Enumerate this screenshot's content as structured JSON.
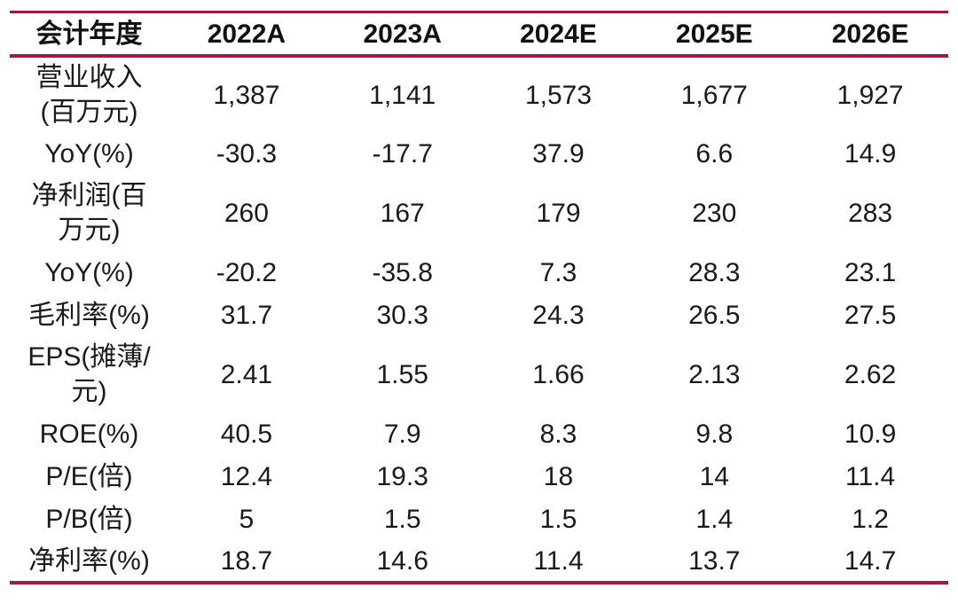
{
  "theme": {
    "accent_line_color": "#A11A45",
    "text_color": "#1a1a1a",
    "background_color": "#ffffff"
  },
  "table": {
    "name": "financial-forecast-table",
    "header": [
      "会计年度",
      "2022A",
      "2023A",
      "2024E",
      "2025E",
      "2026E"
    ],
    "rows": [
      {
        "label": "营业收入\n(百万元)",
        "tall": true,
        "values": [
          "1,387",
          "1,141",
          "1,573",
          "1,677",
          "1,927"
        ]
      },
      {
        "label": "YoY(%)",
        "tall": false,
        "values": [
          "-30.3",
          "-17.7",
          "37.9",
          "6.6",
          "14.9"
        ]
      },
      {
        "label": "净利润(百\n万元)",
        "tall": true,
        "values": [
          "260",
          "167",
          "179",
          "230",
          "283"
        ]
      },
      {
        "label": "YoY(%)",
        "tall": false,
        "values": [
          "-20.2",
          "-35.8",
          "7.3",
          "28.3",
          "23.1"
        ]
      },
      {
        "label": "毛利率(%)",
        "tall": false,
        "values": [
          "31.7",
          "30.3",
          "24.3",
          "26.5",
          "27.5"
        ]
      },
      {
        "label": "EPS(摊薄/\n元)",
        "tall": true,
        "values": [
          "2.41",
          "1.55",
          "1.66",
          "2.13",
          "2.62"
        ]
      },
      {
        "label": "ROE(%)",
        "tall": false,
        "values": [
          "40.5",
          "7.9",
          "8.3",
          "9.8",
          "10.9"
        ]
      },
      {
        "label": "P/E(倍)",
        "tall": false,
        "values": [
          "12.4",
          "19.3",
          "18",
          "14",
          "11.4"
        ]
      },
      {
        "label": "P/B(倍)",
        "tall": false,
        "values": [
          "5",
          "1.5",
          "1.5",
          "1.4",
          "1.2"
        ]
      },
      {
        "label": "净利率(%)",
        "tall": false,
        "values": [
          "18.7",
          "14.6",
          "11.4",
          "13.7",
          "14.7"
        ]
      }
    ]
  }
}
